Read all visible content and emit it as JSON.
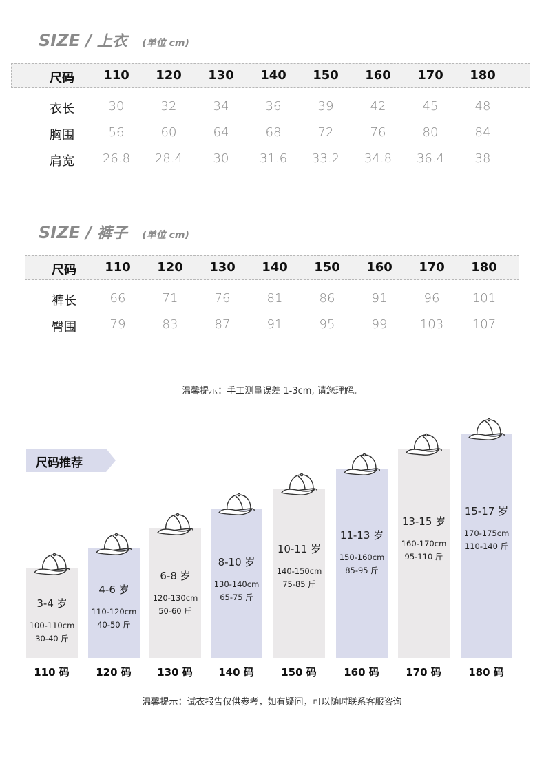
{
  "top": {
    "title_size": "SIZE /",
    "title_name": "上衣",
    "unit": "(单位 cm)",
    "header_label": "尺码",
    "sizes": [
      "110",
      "120",
      "130",
      "140",
      "150",
      "160",
      "170",
      "180"
    ],
    "rows": [
      {
        "label": "衣长",
        "values": [
          "30",
          "32",
          "34",
          "36",
          "39",
          "42",
          "45",
          "48"
        ]
      },
      {
        "label": "胸围",
        "values": [
          "56",
          "60",
          "64",
          "68",
          "72",
          "76",
          "80",
          "84"
        ]
      },
      {
        "label": "肩宽",
        "values": [
          "26.8",
          "28.4",
          "30",
          "31.6",
          "33.2",
          "34.8",
          "36.4",
          "38"
        ]
      }
    ]
  },
  "pants": {
    "title_size": "SIZE /",
    "title_name": "裤子",
    "unit": "(单位 cm)",
    "header_label": "尺码",
    "sizes": [
      "110",
      "120",
      "130",
      "140",
      "150",
      "160",
      "170",
      "180"
    ],
    "rows": [
      {
        "label": "裤长",
        "values": [
          "66",
          "71",
          "76",
          "81",
          "86",
          "91",
          "96",
          "101"
        ]
      },
      {
        "label": "臀围",
        "values": [
          "79",
          "83",
          "87",
          "91",
          "95",
          "99",
          "103",
          "107"
        ]
      }
    ]
  },
  "note1": "温馨提示：手工测量误差 1-3cm, 请您理解。",
  "recommend": {
    "title": "尺码推荐",
    "bars": [
      {
        "age": "3-4 岁",
        "height": "100-110cm",
        "weight": "30-40 斤",
        "size": "110 码"
      },
      {
        "age": "4-6 岁",
        "height": "110-120cm",
        "weight": "40-50 斤",
        "size": "120 码"
      },
      {
        "age": "6-8 岁",
        "height": "120-130cm",
        "weight": "50-60 斤",
        "size": "130 码"
      },
      {
        "age": "8-10 岁",
        "height": "130-140cm",
        "weight": "65-75 斤",
        "size": "140 码"
      },
      {
        "age": "10-11 岁",
        "height": "140-150cm",
        "weight": "75-85 斤",
        "size": "150 码"
      },
      {
        "age": "11-13 岁",
        "height": "150-160cm",
        "weight": "85-95 斤",
        "size": "160 码"
      },
      {
        "age": "13-15 岁",
        "height": "160-170cm",
        "weight": "95-110 斤",
        "size": "170 码"
      },
      {
        "age": "15-17 岁",
        "height": "170-175cm",
        "weight": "110-140 斤",
        "size": "180 码"
      }
    ],
    "colors": {
      "gray": "#ebe9ea",
      "blue": "#d9dbec"
    }
  },
  "note2": "温馨提示：试衣报告仅供参考，如有疑问，可以随时联系客服咨询"
}
